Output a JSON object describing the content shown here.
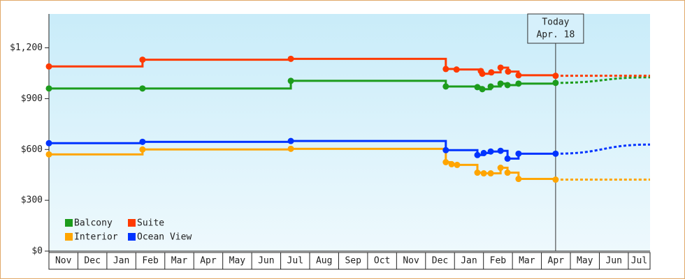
{
  "chart_data": {
    "type": "line",
    "step": true,
    "categories": [
      "Nov",
      "Dec",
      "Jan",
      "Feb",
      "Mar",
      "Apr",
      "May",
      "Jun",
      "Jul",
      "Aug",
      "Sep",
      "Oct",
      "Nov",
      "Dec",
      "Jan",
      "Feb",
      "Mar",
      "Apr",
      "May",
      "Jun",
      "Jul"
    ],
    "xlim": [
      0,
      20.75
    ],
    "ylim": [
      0,
      1400
    ],
    "yticks": [
      {
        "value": 0,
        "label": "$0"
      },
      {
        "value": 300,
        "label": "$300"
      },
      {
        "value": 600,
        "label": "$600"
      },
      {
        "value": 900,
        "label": "$900"
      },
      {
        "value": 1200,
        "label": "$1,200"
      }
    ],
    "series": [
      {
        "name": "Balcony",
        "color": "#1c9c1c",
        "x": [
          0,
          3.23,
          8.35,
          13.7,
          14.79,
          14.96,
          15.25,
          15.59,
          15.83,
          16.21,
          17.49
        ],
        "values": [
          960,
          960,
          1005,
          972,
          968,
          956,
          972,
          989,
          980,
          989,
          993
        ],
        "forecast": 1026
      },
      {
        "name": "Suite",
        "color": "#ff3a00",
        "x": [
          0,
          3.23,
          8.35,
          13.7,
          14.07,
          14.91,
          14.96,
          15.27,
          15.59,
          15.85,
          16.21,
          17.49
        ],
        "values": [
          1090,
          1130,
          1135,
          1075,
          1072,
          1063,
          1047,
          1055,
          1083,
          1060,
          1038,
          1035
        ],
        "forecast": 1035
      },
      {
        "name": "Interior",
        "color": "#ffa500",
        "x": [
          0,
          3.23,
          8.35,
          13.7,
          13.9,
          14.09,
          14.79,
          15.01,
          15.25,
          15.59,
          15.83,
          16.21,
          17.49
        ],
        "values": [
          571,
          600,
          604,
          525,
          513,
          509,
          463,
          459,
          459,
          492,
          463,
          426,
          422
        ],
        "forecast": 422
      },
      {
        "name": "Ocean View",
        "color": "#0033ff",
        "x": [
          0,
          3.23,
          8.35,
          13.7,
          14.79,
          15.01,
          15.25,
          15.59,
          15.83,
          16.21,
          17.49
        ],
        "values": [
          637,
          645,
          650,
          596,
          567,
          579,
          588,
          592,
          546,
          575,
          575
        ],
        "forecast": 629
      }
    ],
    "today": {
      "lines": [
        "Today",
        "Apr. 18"
      ],
      "x": 17.49
    }
  }
}
